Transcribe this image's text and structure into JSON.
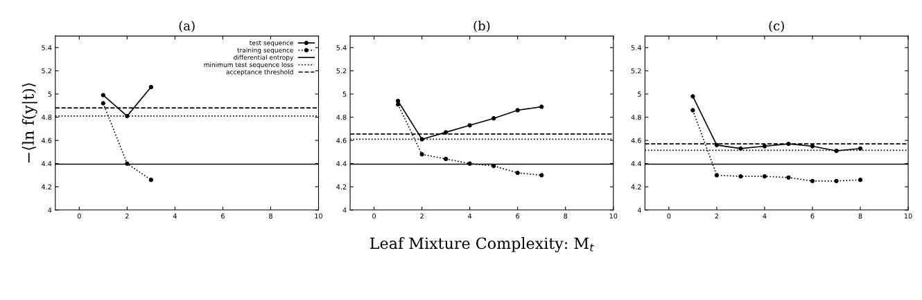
{
  "chart_data": [
    {
      "type": "line",
      "title": "(a)",
      "ylabel": "−⟨ln f(y|t)⟩",
      "xlim": [
        -1,
        10
      ],
      "ylim": [
        4,
        5.5
      ],
      "xticks": [
        0,
        2,
        4,
        6,
        8,
        10
      ],
      "yticks": [
        4,
        4.2,
        4.4,
        4.6,
        4.8,
        5,
        5.2,
        5.4
      ],
      "grid": false,
      "legend": "top right",
      "marker": "circle",
      "series": [
        {
          "name": "test sequence",
          "color": "#000000",
          "line_style": "solid",
          "x": [
            1,
            2,
            3
          ],
          "values": [
            4.99,
            4.81,
            5.06
          ]
        },
        {
          "name": "training sequence",
          "color": "#000000",
          "line_style": "dotted",
          "x": [
            1,
            2,
            3
          ],
          "values": [
            4.92,
            4.4,
            4.26
          ]
        }
      ],
      "ref_lines": [
        {
          "axis": "y",
          "value": 4.395,
          "label": "differential entropy",
          "color": "#000000",
          "line_style": "solid"
        },
        {
          "axis": "y",
          "value": 4.81,
          "label": "minimum test sequence loss",
          "color": "#000000",
          "line_style": "dotted"
        },
        {
          "axis": "y",
          "value": 4.88,
          "label": "acceptance threshold",
          "color": "#000000",
          "line_style": "dashed"
        }
      ]
    },
    {
      "type": "line",
      "title": "(b)",
      "xlabel": "Leaf Mixture Complexity: M$_{t}$",
      "xlim": [
        -1,
        10
      ],
      "ylim": [
        4,
        5.5
      ],
      "xticks": [
        0,
        2,
        4,
        6,
        8,
        10
      ],
      "yticks": [
        4,
        4.2,
        4.4,
        4.6,
        4.8,
        5,
        5.2,
        5.4
      ],
      "grid": false,
      "marker": "circle",
      "series": [
        {
          "color": "#000000",
          "line_style": "solid",
          "x": [
            1,
            2,
            3,
            4,
            5,
            6,
            7
          ],
          "values": [
            4.94,
            4.61,
            4.67,
            4.73,
            4.79,
            4.86,
            4.89
          ]
        },
        {
          "color": "#000000",
          "line_style": "dotted",
          "x": [
            1,
            2,
            3,
            4,
            5,
            6,
            7
          ],
          "values": [
            4.91,
            4.48,
            4.44,
            4.4,
            4.38,
            4.32,
            4.3
          ]
        }
      ],
      "ref_lines": [
        {
          "axis": "y",
          "value": 4.395,
          "color": "#000000",
          "line_style": "solid"
        },
        {
          "axis": "y",
          "value": 4.61,
          "color": "#000000",
          "line_style": "dotted"
        },
        {
          "axis": "y",
          "value": 4.655,
          "color": "#000000",
          "line_style": "dashed"
        }
      ]
    },
    {
      "type": "line",
      "title": "(c)",
      "xlim": [
        -1,
        10
      ],
      "ylim": [
        4,
        5.5
      ],
      "xticks": [
        0,
        2,
        4,
        6,
        8,
        10
      ],
      "yticks": [
        4,
        4.2,
        4.4,
        4.6,
        4.8,
        5,
        5.2,
        5.4
      ],
      "grid": false,
      "marker": "circle",
      "series": [
        {
          "color": "#000000",
          "line_style": "solid",
          "x": [
            1,
            2,
            3,
            4,
            5,
            6,
            7,
            8
          ],
          "values": [
            4.98,
            4.56,
            4.53,
            4.55,
            4.57,
            4.55,
            4.51,
            4.53
          ]
        },
        {
          "color": "#000000",
          "line_style": "dotted",
          "x": [
            1,
            2,
            3,
            4,
            5,
            6,
            7,
            8
          ],
          "values": [
            4.86,
            4.3,
            4.29,
            4.29,
            4.28,
            4.25,
            4.25,
            4.26
          ]
        }
      ],
      "ref_lines": [
        {
          "axis": "y",
          "value": 4.395,
          "color": "#000000",
          "line_style": "solid"
        },
        {
          "axis": "y",
          "value": 4.515,
          "color": "#000000",
          "line_style": "dotted"
        },
        {
          "axis": "y",
          "value": 4.57,
          "color": "#000000",
          "line_style": "dashed"
        }
      ]
    }
  ]
}
